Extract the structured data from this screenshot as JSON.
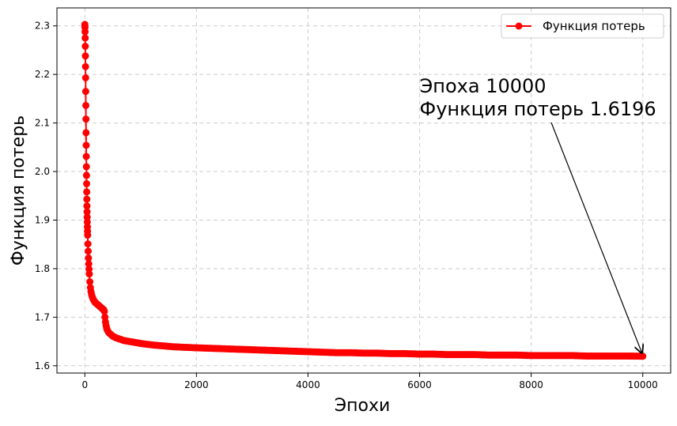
{
  "chart_data": {
    "type": "line",
    "title": "",
    "xlabel": "Эпохи",
    "ylabel": "Функция потерь",
    "xlim": [
      -500,
      10500
    ],
    "ylim": [
      1.585,
      2.337
    ],
    "grid": true,
    "grid_style": "dashed",
    "legend_position": "top-right",
    "x_ticks": [
      0,
      2000,
      4000,
      6000,
      8000,
      10000
    ],
    "y_ticks": [
      1.6,
      1.7,
      1.8,
      1.9,
      2.0,
      2.1,
      2.2,
      2.3
    ],
    "x_tick_labels": [
      "0",
      "2000",
      "4000",
      "6000",
      "8000",
      "10000"
    ],
    "y_tick_labels": [
      "1.6",
      "1.7",
      "1.8",
      "1.9",
      "2.0",
      "2.1",
      "2.2",
      "2.3"
    ],
    "series": [
      {
        "name": "Функция потерь",
        "color": "#ff0000",
        "marker": "circle",
        "x": [
          0,
          2,
          4,
          6,
          8,
          10,
          12,
          14,
          16,
          18,
          20,
          22,
          24,
          26,
          28,
          30,
          32,
          34,
          36,
          38,
          40,
          42,
          44,
          46,
          48,
          50,
          55,
          60,
          65,
          70,
          75,
          80,
          90,
          100,
          110,
          120,
          130,
          140,
          150,
          160,
          170,
          180,
          190,
          200,
          210,
          220,
          230,
          240,
          250,
          260,
          270,
          280,
          290,
          300,
          310,
          320,
          330,
          340,
          350,
          360,
          370,
          380,
          390,
          400,
          420,
          440,
          460,
          480,
          500,
          550,
          600,
          650,
          700,
          750,
          800,
          850,
          900,
          950,
          1000,
          1200,
          1400,
          1600,
          1800,
          2000,
          2250,
          2500,
          2750,
          3000,
          3250,
          3500,
          3750,
          4000,
          4250,
          4500,
          4750,
          5000,
          5250,
          5500,
          5750,
          6000,
          6250,
          6500,
          6750,
          7000,
          7250,
          7500,
          7750,
          8000,
          8250,
          8500,
          8750,
          9000,
          9250,
          9500,
          9750,
          10000
        ],
        "values": [
          2.303,
          2.297,
          2.288,
          2.275,
          2.258,
          2.238,
          2.216,
          2.193,
          2.165,
          2.136,
          2.108,
          2.08,
          2.054,
          2.031,
          2.01,
          1.992,
          1.975,
          1.958,
          1.943,
          1.929,
          1.917,
          1.906,
          1.896,
          1.886,
          1.877,
          1.869,
          1.851,
          1.836,
          1.822,
          1.81,
          1.799,
          1.789,
          1.773,
          1.761,
          1.753,
          1.747,
          1.743,
          1.74,
          1.737,
          1.735,
          1.733,
          1.731,
          1.73,
          1.729,
          1.728,
          1.727,
          1.726,
          1.725,
          1.724,
          1.723,
          1.722,
          1.721,
          1.72,
          1.719,
          1.718,
          1.717,
          1.716,
          1.715,
          1.712,
          1.7,
          1.69,
          1.683,
          1.678,
          1.674,
          1.67,
          1.667,
          1.665,
          1.663,
          1.661,
          1.658,
          1.656,
          1.654,
          1.652,
          1.651,
          1.65,
          1.649,
          1.648,
          1.647,
          1.646,
          1.643,
          1.641,
          1.639,
          1.638,
          1.637,
          1.636,
          1.635,
          1.634,
          1.633,
          1.632,
          1.631,
          1.63,
          1.629,
          1.628,
          1.627,
          1.627,
          1.626,
          1.626,
          1.625,
          1.625,
          1.624,
          1.624,
          1.623,
          1.623,
          1.623,
          1.622,
          1.622,
          1.622,
          1.621,
          1.621,
          1.621,
          1.621,
          1.62,
          1.62,
          1.62,
          1.62,
          1.6196
        ]
      }
    ],
    "annotation": {
      "line1": "Эпоха 10000",
      "line2": "Функция потерь 1.6196",
      "target_x": 10000,
      "target_y": 1.6196,
      "text_x": 6000,
      "text_y": 2.13
    }
  }
}
